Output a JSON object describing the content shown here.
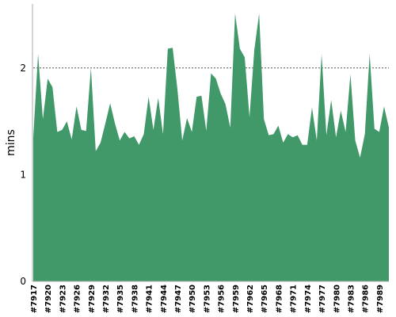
{
  "chart_data": {
    "type": "area",
    "title": "",
    "xlabel": "",
    "ylabel": "mins",
    "ylim": [
      0,
      2.6
    ],
    "yticks": [
      "0",
      "1",
      "2"
    ],
    "grid": "horizontal dashed at major ticks",
    "color": "#41996a",
    "builds": [
      "#7917",
      "#7918",
      "#7919",
      "#7920",
      "#7921",
      "#7922",
      "#7923",
      "#7924",
      "#7925",
      "#7926",
      "#7927",
      "#7928",
      "#7929",
      "#7930",
      "#7931",
      "#7932",
      "#7933",
      "#7934",
      "#7935",
      "#7936",
      "#7937",
      "#7938",
      "#7939",
      "#7940",
      "#7941",
      "#7942",
      "#7943",
      "#7944",
      "#7945",
      "#7946",
      "#7947",
      "#7948",
      "#7949",
      "#7950",
      "#7951",
      "#7952",
      "#7953",
      "#7954",
      "#7955",
      "#7956",
      "#7957",
      "#7958",
      "#7959",
      "#7960",
      "#7961",
      "#7962",
      "#7963",
      "#7964",
      "#7965",
      "#7966",
      "#7967",
      "#7968",
      "#7969",
      "#7970",
      "#7971",
      "#7972",
      "#7973",
      "#7974",
      "#7975",
      "#7976",
      "#7977",
      "#7978",
      "#7979",
      "#7980",
      "#7981",
      "#7982",
      "#7983",
      "#7984",
      "#7985",
      "#7986",
      "#7987",
      "#7988",
      "#7989",
      "#7990",
      "#7991"
    ],
    "values": [
      1.35,
      2.13,
      1.52,
      1.9,
      1.82,
      1.4,
      1.42,
      1.5,
      1.33,
      1.64,
      1.42,
      1.41,
      2.0,
      1.22,
      1.3,
      1.48,
      1.67,
      1.48,
      1.32,
      1.4,
      1.34,
      1.36,
      1.28,
      1.38,
      1.73,
      1.42,
      1.72,
      1.38,
      2.18,
      2.19,
      1.8,
      1.32,
      1.53,
      1.4,
      1.73,
      1.74,
      1.41,
      1.95,
      1.9,
      1.76,
      1.66,
      1.44,
      2.51,
      2.18,
      2.1,
      1.54,
      2.17,
      2.51,
      1.52,
      1.37,
      1.38,
      1.46,
      1.3,
      1.38,
      1.35,
      1.37,
      1.28,
      1.28,
      1.63,
      1.32,
      2.13,
      1.37,
      1.7,
      1.35,
      1.6,
      1.4,
      1.94,
      1.32,
      1.16,
      1.38,
      2.13,
      1.43,
      1.4,
      1.64,
      1.44
    ],
    "xtick_labels": [
      "#7917",
      "#7920",
      "#7923",
      "#7926",
      "#7929",
      "#7932",
      "#7935",
      "#7938",
      "#7941",
      "#7944",
      "#7947",
      "#7950",
      "#7953",
      "#7956",
      "#7959",
      "#7962",
      "#7965",
      "#7968",
      "#7971",
      "#7974",
      "#7977",
      "#7980",
      "#7983",
      "#7986",
      "#7989"
    ]
  }
}
